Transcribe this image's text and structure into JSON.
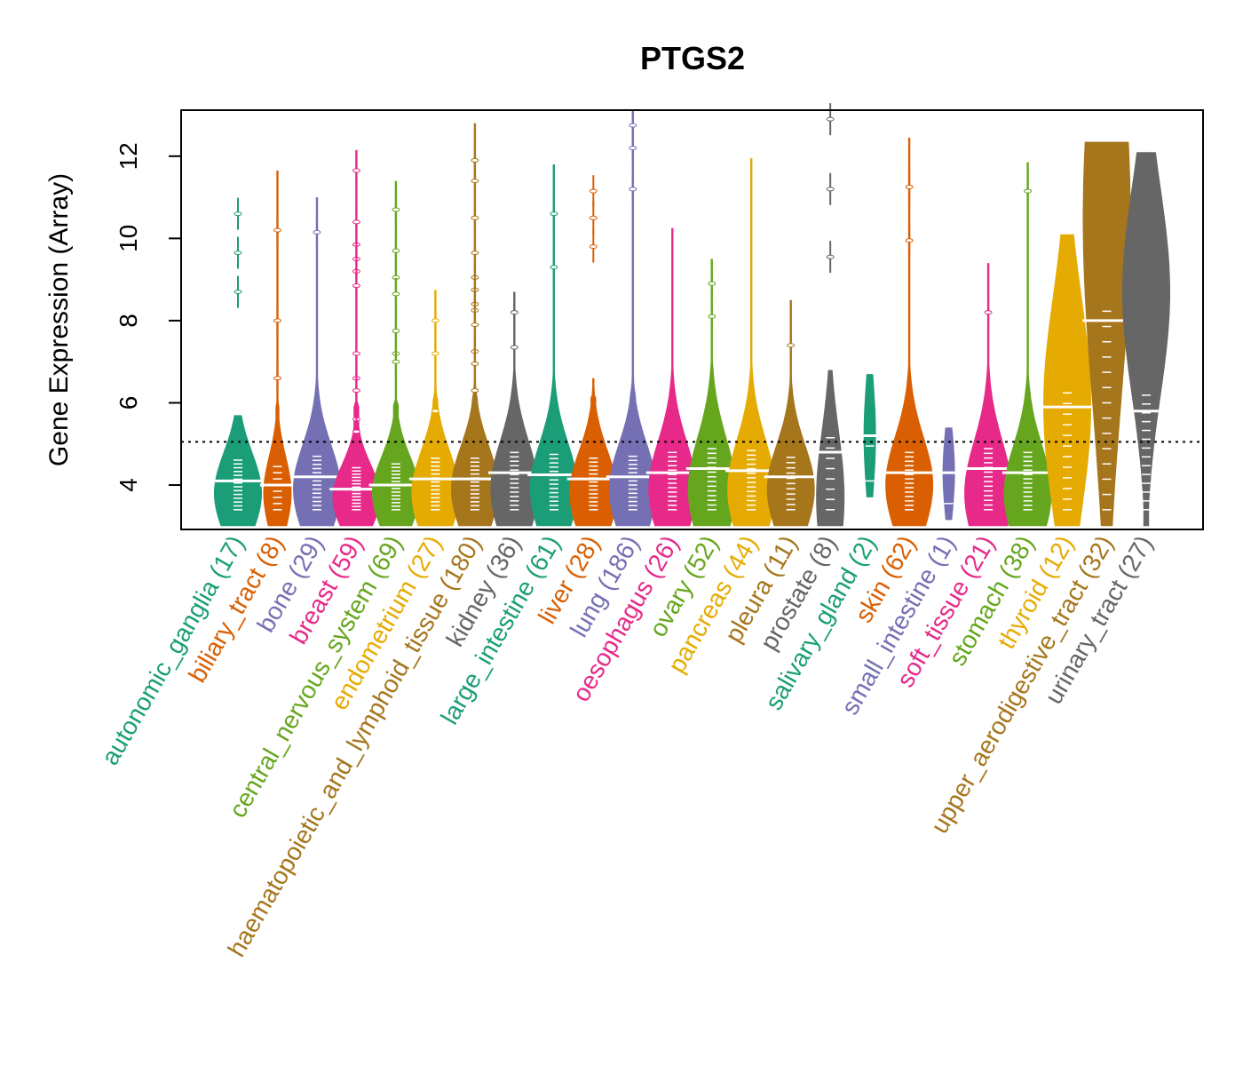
{
  "chart_data": {
    "type": "violin",
    "title": "PTGS2",
    "xlabel": "",
    "ylabel": "Gene Expression (Array)",
    "ylim": [
      2.92,
      13.12
    ],
    "yticks": [
      4,
      6,
      8,
      10,
      12
    ],
    "reference_line": {
      "value": 5.05,
      "style": "dotted",
      "color": "#000000"
    },
    "grid": false,
    "legend": "none",
    "categories": [
      {
        "name": "autonomic_ganglia",
        "n": 17,
        "label": "autonomic_ganglia (17)",
        "color": "#1B9E77",
        "min": 3.0,
        "max": 5.7,
        "median": 4.1,
        "peak": 3.8,
        "outliers": [
          9.65,
          8.7,
          10.6
        ]
      },
      {
        "name": "biliary_tract",
        "n": 8,
        "label": "biliary_tract (8)",
        "color": "#D95F02",
        "min": 3.0,
        "max": 11.65,
        "median": 4.0,
        "peak": 3.8,
        "outliers": [
          10.2,
          8.0,
          6.6
        ]
      },
      {
        "name": "bone",
        "n": 29,
        "label": "bone (29)",
        "color": "#7570B3",
        "min": 3.0,
        "max": 11.0,
        "median": 4.2,
        "peak": 3.9,
        "outliers": [
          10.15
        ]
      },
      {
        "name": "breast",
        "n": 59,
        "label": "breast (59)",
        "color": "#E7298A",
        "min": 3.0,
        "max": 12.15,
        "median": 3.9,
        "peak": 3.7,
        "outliers": [
          11.65,
          10.4,
          9.85,
          9.5,
          9.2,
          8.85,
          7.2,
          6.6,
          6.3,
          5.6,
          5.3
        ]
      },
      {
        "name": "central_nervous_system",
        "n": 69,
        "label": "central_nervous_system (69)",
        "color": "#66A61E",
        "min": 3.0,
        "max": 11.4,
        "median": 4.0,
        "peak": 3.8,
        "outliers": [
          10.7,
          9.7,
          9.05,
          8.65,
          7.75,
          7.2,
          7.0
        ]
      },
      {
        "name": "endometrium",
        "n": 27,
        "label": "endometrium (27)",
        "color": "#E6AB02",
        "min": 3.0,
        "max": 8.75,
        "median": 4.15,
        "peak": 3.8,
        "outliers": [
          8.0,
          7.2,
          5.8
        ]
      },
      {
        "name": "haematopoietic_and_lymphoid_tissue",
        "n": 180,
        "label": "haematopoietic_and_lymphoid_tissue (180)",
        "color": "#A6761D",
        "min": 3.0,
        "max": 12.8,
        "median": 4.15,
        "peak": 3.9,
        "outliers": [
          11.9,
          11.4,
          10.5,
          9.65,
          9.05,
          8.75,
          8.4,
          8.25,
          7.9,
          7.25,
          6.95,
          6.3
        ]
      },
      {
        "name": "kidney",
        "n": 36,
        "label": "kidney (36)",
        "color": "#666666",
        "min": 3.0,
        "max": 8.7,
        "median": 4.3,
        "peak": 3.9,
        "outliers": [
          8.2,
          7.35
        ]
      },
      {
        "name": "large_intestine",
        "n": 61,
        "label": "large_intestine (61)",
        "color": "#1B9E77",
        "min": 3.0,
        "max": 11.8,
        "median": 4.25,
        "peak": 3.9,
        "outliers": [
          10.6,
          9.3
        ]
      },
      {
        "name": "liver",
        "n": 28,
        "label": "liver (28)",
        "color": "#D95F02",
        "min": 3.0,
        "max": 6.6,
        "median": 4.15,
        "peak": 3.8,
        "outliers": [
          10.5,
          9.8,
          11.15
        ]
      },
      {
        "name": "lung",
        "n": 186,
        "label": "lung (186)",
        "color": "#7570B3",
        "min": 3.0,
        "max": 13.1,
        "median": 4.2,
        "peak": 3.9,
        "outliers": [
          12.75,
          12.2,
          11.2
        ]
      },
      {
        "name": "oesophagus",
        "n": 26,
        "label": "oesophagus (26)",
        "color": "#E7298A",
        "min": 3.0,
        "max": 10.25,
        "median": 4.3,
        "peak": 3.9,
        "outliers": []
      },
      {
        "name": "ovary",
        "n": 52,
        "label": "ovary (52)",
        "color": "#66A61E",
        "min": 3.0,
        "max": 9.5,
        "median": 4.4,
        "peak": 3.9,
        "outliers": [
          8.9,
          8.1
        ]
      },
      {
        "name": "pancreas",
        "n": 44,
        "label": "pancreas (44)",
        "color": "#E6AB02",
        "min": 3.0,
        "max": 11.95,
        "median": 4.35,
        "peak": 3.9,
        "outliers": []
      },
      {
        "name": "pleura",
        "n": 11,
        "label": "pleura (11)",
        "color": "#A6761D",
        "min": 3.0,
        "max": 8.5,
        "median": 4.2,
        "peak": 3.9,
        "outliers": [
          7.4
        ]
      },
      {
        "name": "prostate",
        "n": 8,
        "label": "prostate (8)",
        "color": "#666666",
        "min": 3.0,
        "max": 6.8,
        "median": 4.8,
        "peak": 3.7,
        "outliers": [
          11.2,
          12.9,
          9.55
        ]
      },
      {
        "name": "salivary_gland",
        "n": 2,
        "label": "salivary_gland (2)",
        "color": "#1B9E77",
        "min": 3.7,
        "max": 6.7,
        "median": 5.2,
        "peak": 5.2,
        "outliers": []
      },
      {
        "name": "skin",
        "n": 62,
        "label": "skin (62)",
        "color": "#D95F02",
        "min": 3.0,
        "max": 12.45,
        "median": 4.3,
        "peak": 4.0,
        "outliers": [
          11.25,
          9.95
        ]
      },
      {
        "name": "small_intestine",
        "n": 1,
        "label": "small_intestine (1)",
        "color": "#7570B3",
        "min": 3.15,
        "max": 5.4,
        "median": 4.3,
        "peak": 4.3,
        "outliers": []
      },
      {
        "name": "soft_tissue",
        "n": 21,
        "label": "soft_tissue (21)",
        "color": "#E7298A",
        "min": 3.0,
        "max": 9.4,
        "median": 4.4,
        "peak": 3.8,
        "outliers": [
          8.2
        ]
      },
      {
        "name": "stomach",
        "n": 38,
        "label": "stomach (38)",
        "color": "#66A61E",
        "min": 3.0,
        "max": 11.85,
        "median": 4.3,
        "peak": 3.8,
        "outliers": [
          11.15
        ]
      },
      {
        "name": "thyroid",
        "n": 12,
        "label": "thyroid (12)",
        "color": "#E6AB02",
        "min": 3.0,
        "max": 10.1,
        "median": 5.9,
        "peak": 5.95,
        "outliers": []
      },
      {
        "name": "upper_aerodigestive_tract",
        "n": 32,
        "label": "upper_aerodigestive_tract (32)",
        "color": "#A6761D",
        "min": 3.0,
        "max": 12.35,
        "median": 8.0,
        "peak": 10.5,
        "outliers": []
      },
      {
        "name": "urinary_tract",
        "n": 27,
        "label": "urinary_tract (27)",
        "color": "#666666",
        "min": 3.0,
        "max": 12.1,
        "median": 5.8,
        "peak": 8.7,
        "outliers": []
      }
    ]
  }
}
